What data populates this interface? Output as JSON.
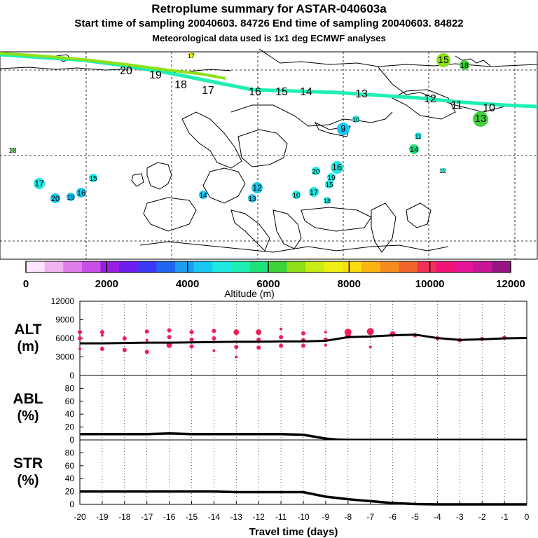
{
  "header": {
    "title": "Retroplume summary for ASTAR-040603a",
    "sampling": "Start time of sampling 20040603. 84726     End time of sampling 20040603. 84822",
    "meteo": "Meteorological data used is 1x1 deg ECMWF analyses"
  },
  "colorbar": {
    "label": "Altitude (m)",
    "min": 0,
    "max": 12000,
    "tick_values": [
      0,
      2000,
      4000,
      6000,
      8000,
      10000,
      12000
    ],
    "tick_labels": [
      "0",
      "2000",
      "4000",
      "6000",
      "8000",
      "10000",
      "12000"
    ],
    "colors": [
      "#ffe6ff",
      "#f2b3f2",
      "#e07fec",
      "#c84fe8",
      "#9a1fe0",
      "#6e1ef0",
      "#3c38f5",
      "#1f66f5",
      "#1e9cf0",
      "#17c8f0",
      "#1ee8e0",
      "#1ef0b4",
      "#1ee27c",
      "#3ed23a",
      "#8ee018",
      "#c8ec14",
      "#eef014",
      "#fadc10",
      "#fab414",
      "#f78c1e",
      "#f3642d",
      "#ef3255",
      "#f01478",
      "#e61496",
      "#c81496",
      "#961484"
    ]
  },
  "map": {
    "trajectory_labels": [
      "20",
      "19",
      "18",
      "17",
      "16",
      "15",
      "14",
      "13",
      "12",
      "11",
      "10"
    ],
    "cluster_labels": [
      "17",
      "15",
      "18",
      "13",
      "10",
      "11",
      "14",
      "9",
      "12",
      "16",
      "20",
      "19",
      "15",
      "17",
      "18",
      "10",
      "13",
      "12",
      "14",
      "15",
      "16",
      "19",
      "20",
      "17"
    ]
  },
  "chart_data": [
    {
      "type": "scatter",
      "panel": "ALT",
      "title": "ALT",
      "unit": "(m)",
      "xlim": [
        -20,
        0
      ],
      "ylim": [
        0,
        12000
      ],
      "ytick_labels": [
        "0",
        "3000",
        "6000",
        "9000",
        "12000"
      ],
      "ytick_values": [
        0,
        3000,
        6000,
        9000,
        12000
      ],
      "line_x": [
        -20,
        -19,
        -18,
        -17,
        -16,
        -15,
        -14,
        -13,
        -12,
        -11,
        -10,
        -9,
        -8,
        -7,
        -6,
        -5,
        -4,
        -3,
        -2,
        -1,
        0
      ],
      "line_y": [
        5200,
        5200,
        5250,
        5300,
        5300,
        5350,
        5400,
        5450,
        5450,
        5500,
        5500,
        5600,
        6200,
        6300,
        6500,
        6600,
        6050,
        5750,
        5850,
        6000,
        6050
      ],
      "points": [
        {
          "x": -20,
          "y": 7000,
          "size": 3
        },
        {
          "x": -20,
          "y": 6000,
          "size": 3
        },
        {
          "x": -20,
          "y": 4300,
          "size": 2
        },
        {
          "x": -19,
          "y": 7000,
          "size": 3
        },
        {
          "x": -19,
          "y": 6500,
          "size": 2
        },
        {
          "x": -19,
          "y": 4300,
          "size": 3
        },
        {
          "x": -18,
          "y": 6000,
          "size": 3
        },
        {
          "x": -18,
          "y": 4100,
          "size": 3
        },
        {
          "x": -17,
          "y": 7100,
          "size": 3
        },
        {
          "x": -17,
          "y": 5700,
          "size": 2
        },
        {
          "x": -17,
          "y": 3800,
          "size": 3
        },
        {
          "x": -16,
          "y": 7300,
          "size": 3
        },
        {
          "x": -16,
          "y": 6200,
          "size": 3
        },
        {
          "x": -16,
          "y": 4900,
          "size": 4
        },
        {
          "x": -15,
          "y": 7000,
          "size": 3
        },
        {
          "x": -15,
          "y": 5800,
          "size": 3
        },
        {
          "x": -15,
          "y": 4700,
          "size": 3
        },
        {
          "x": -14,
          "y": 7200,
          "size": 3
        },
        {
          "x": -14,
          "y": 6000,
          "size": 3
        },
        {
          "x": -14,
          "y": 4000,
          "size": 2
        },
        {
          "x": -13,
          "y": 7000,
          "size": 4
        },
        {
          "x": -13,
          "y": 4600,
          "size": 3
        },
        {
          "x": -13,
          "y": 3000,
          "size": 2
        },
        {
          "x": -12,
          "y": 7000,
          "size": 4
        },
        {
          "x": -12,
          "y": 5800,
          "size": 3
        },
        {
          "x": -12,
          "y": 4500,
          "size": 3
        },
        {
          "x": -11,
          "y": 7500,
          "size": 2
        },
        {
          "x": -11,
          "y": 6200,
          "size": 3
        },
        {
          "x": -11,
          "y": 4800,
          "size": 3
        },
        {
          "x": -10,
          "y": 6800,
          "size": 3
        },
        {
          "x": -10,
          "y": 5700,
          "size": 3
        },
        {
          "x": -10,
          "y": 4800,
          "size": 3
        },
        {
          "x": -9,
          "y": 7000,
          "size": 2
        },
        {
          "x": -9,
          "y": 5800,
          "size": 3
        },
        {
          "x": -9,
          "y": 4900,
          "size": 2
        },
        {
          "x": -8,
          "y": 7000,
          "size": 5
        },
        {
          "x": -8,
          "y": 6400,
          "size": 4
        },
        {
          "x": -7,
          "y": 7100,
          "size": 5
        },
        {
          "x": -7,
          "y": 4600,
          "size": 2
        },
        {
          "x": -6,
          "y": 6700,
          "size": 4
        },
        {
          "x": -5,
          "y": 6500,
          "size": 3
        },
        {
          "x": -4,
          "y": 6000,
          "size": 3
        },
        {
          "x": -3,
          "y": 5700,
          "size": 3
        },
        {
          "x": -2,
          "y": 5900,
          "size": 3
        },
        {
          "x": -1,
          "y": 6100,
          "size": 3
        }
      ]
    },
    {
      "type": "line",
      "panel": "ABL",
      "title": "ABL",
      "unit": "(%)",
      "xlim": [
        -20,
        0
      ],
      "ylim": [
        0,
        100
      ],
      "ytick_labels": [
        "0",
        "20",
        "40",
        "60",
        "80"
      ],
      "ytick_values": [
        0,
        20,
        40,
        60,
        80
      ],
      "x": [
        -20,
        -19,
        -18,
        -17,
        -16,
        -15,
        -14,
        -13,
        -12,
        -11,
        -10,
        -9.5,
        -9,
        -8.5,
        -8,
        -7,
        -6,
        -5,
        -4,
        -3,
        -2,
        -1,
        0
      ],
      "y": [
        9,
        9,
        9,
        9,
        10,
        9,
        9,
        9,
        9,
        9,
        8,
        5,
        2,
        0.5,
        0,
        0,
        0,
        0,
        0,
        0,
        0,
        0,
        0
      ]
    },
    {
      "type": "line",
      "panel": "STR",
      "title": "STR",
      "unit": "(%)",
      "xlim": [
        -20,
        0
      ],
      "ylim": [
        0,
        100
      ],
      "ytick_labels": [
        "0",
        "20",
        "40",
        "60",
        "80"
      ],
      "ytick_values": [
        0,
        20,
        40,
        60,
        80
      ],
      "x": [
        -20,
        -19,
        -18,
        -17,
        -16,
        -15,
        -14,
        -13,
        -12,
        -11,
        -10,
        -9,
        -8,
        -7,
        -6,
        -5,
        -4,
        -3,
        -2,
        -1,
        0
      ],
      "y": [
        20,
        20,
        20,
        20,
        20,
        20,
        20,
        19,
        19,
        19,
        19,
        12,
        8,
        5,
        2,
        0.5,
        0,
        0,
        0,
        0,
        0
      ],
      "xtick_values": [
        -20,
        -19,
        -18,
        -17,
        -16,
        -15,
        -14,
        -13,
        -12,
        -11,
        -10,
        -9,
        -8,
        -7,
        -6,
        -5,
        -4,
        -3,
        -2,
        -1,
        0
      ],
      "xtick_labels": [
        "-20",
        "-19",
        "-18",
        "-17",
        "-16",
        "-15",
        "-14",
        "-13",
        "-12",
        "-11",
        "-10",
        "-9",
        "-8",
        "-7",
        "-6",
        "-5",
        "-4",
        "-3",
        "-2",
        "-1",
        "0"
      ],
      "xlabel": "Travel time (days)"
    }
  ]
}
